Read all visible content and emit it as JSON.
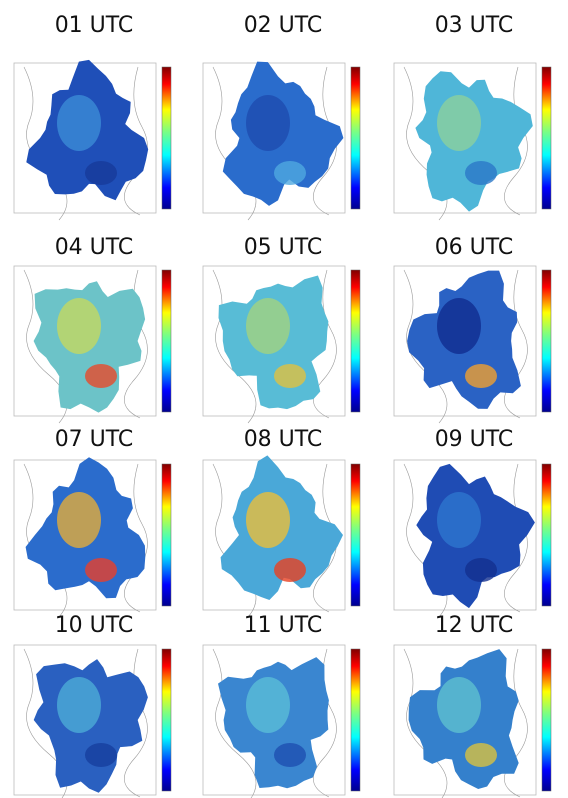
{
  "panels": [
    "01 UTC",
    "02 UTC",
    "03 UTC",
    "04 UTC",
    "05 UTC",
    "06 UTC",
    "07 UTC",
    "08 UTC",
    "09 UTC",
    "10 UTC",
    "11 UTC",
    "12 UTC"
  ]
}
